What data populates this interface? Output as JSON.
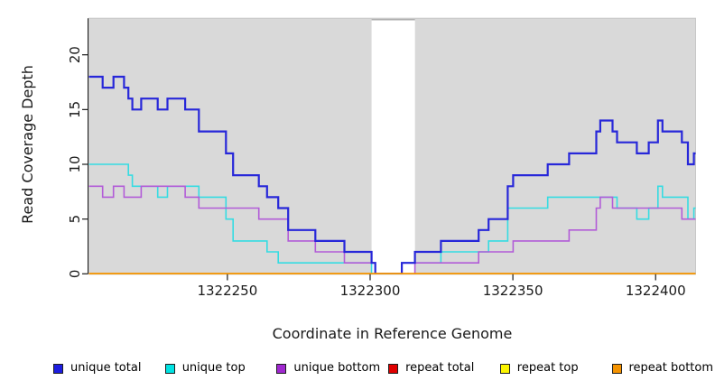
{
  "y_axis": {
    "label": "Read Coverage Depth",
    "ticks": [
      0,
      5,
      10,
      15,
      20
    ]
  },
  "x_axis": {
    "label": "Coordinate in Reference Genome",
    "ticks": [
      1322250,
      1322300,
      1322350,
      1322400
    ]
  },
  "legend": {
    "items": [
      {
        "label": "unique total",
        "color": "#1d1de0"
      },
      {
        "label": "unique top",
        "color": "#00e2e2"
      },
      {
        "label": "unique bottom",
        "color": "#a028d0"
      },
      {
        "label": "repeat total",
        "color": "#e00000"
      },
      {
        "label": "repeat top",
        "color": "#fcf500"
      },
      {
        "label": "repeat bottom",
        "color": "#f59300"
      }
    ]
  },
  "colors": {
    "panel_background": "#d9d9d9",
    "gap_band": "#ffffff",
    "panel_border": "#c7c7c7",
    "gap_band_border": "#8f8f8f",
    "axis": "#1a1a1a"
  },
  "chart_data": {
    "type": "line",
    "step": "after",
    "xlabel": "Coordinate in Reference Genome",
    "ylabel": "Read Coverage Depth",
    "xlim": [
      1322201.5,
      1322414.3
    ],
    "ylim": [
      0,
      23.3
    ],
    "x_ticks": [
      1322250,
      1322300,
      1322350,
      1322400
    ],
    "y_ticks": [
      0,
      5,
      10,
      15,
      20
    ],
    "grid": false,
    "legend_position": "bottom",
    "gap_band": {
      "from": 1322300.5,
      "to": 1322315.7
    },
    "series": [
      {
        "name": "unique total",
        "color": "#2727d9",
        "width": 2.2,
        "points": [
          [
            1322201.5,
            18
          ],
          [
            1322206.3,
            17
          ],
          [
            1322210.1,
            18
          ],
          [
            1322213.8,
            17
          ],
          [
            1322215.3,
            16
          ],
          [
            1322216.7,
            15
          ],
          [
            1322219.8,
            16
          ],
          [
            1322225.6,
            15
          ],
          [
            1322229,
            16
          ],
          [
            1322235.2,
            15
          ],
          [
            1322240,
            13
          ],
          [
            1322249.5,
            11
          ],
          [
            1322252,
            9
          ],
          [
            1322261,
            8
          ],
          [
            1322263.9,
            7
          ],
          [
            1322267.8,
            6
          ],
          [
            1322271.3,
            4
          ],
          [
            1322280.8,
            3
          ],
          [
            1322291,
            2
          ],
          [
            1322300.5,
            1
          ],
          [
            1322301.8,
            0
          ],
          [
            1322311.1,
            1
          ],
          [
            1322315.7,
            2
          ],
          [
            1322324.8,
            3
          ],
          [
            1322338,
            4
          ],
          [
            1322341.5,
            5
          ],
          [
            1322348.2,
            8
          ],
          [
            1322350.1,
            9
          ],
          [
            1322362.2,
            10
          ],
          [
            1322369.7,
            11
          ],
          [
            1322379.2,
            13
          ],
          [
            1322380.6,
            14
          ],
          [
            1322384.9,
            13
          ],
          [
            1322386.5,
            12
          ],
          [
            1322393.4,
            11
          ],
          [
            1322397.6,
            12
          ],
          [
            1322400.8,
            14
          ],
          [
            1322402.4,
            13
          ],
          [
            1322409.2,
            12
          ],
          [
            1322411.3,
            10
          ],
          [
            1322413.4,
            11
          ]
        ]
      },
      {
        "name": "unique top",
        "color": "#35dce2",
        "width": 1.6,
        "points": [
          [
            1322201.5,
            10
          ],
          [
            1322215.3,
            9
          ],
          [
            1322216.7,
            8
          ],
          [
            1322225.6,
            7
          ],
          [
            1322229,
            8
          ],
          [
            1322240,
            7
          ],
          [
            1322249.5,
            5
          ],
          [
            1322252,
            3
          ],
          [
            1322263.9,
            2
          ],
          [
            1322267.8,
            1
          ],
          [
            1322300.5,
            0
          ],
          [
            1322311.1,
            1
          ],
          [
            1322324.8,
            2
          ],
          [
            1322341.5,
            3
          ],
          [
            1322348.2,
            6
          ],
          [
            1322362.2,
            7
          ],
          [
            1322386.5,
            6
          ],
          [
            1322393.4,
            5
          ],
          [
            1322397.6,
            6
          ],
          [
            1322400.8,
            8
          ],
          [
            1322402.4,
            7
          ],
          [
            1322411.3,
            5
          ],
          [
            1322413.4,
            6
          ]
        ]
      },
      {
        "name": "unique bottom",
        "color": "#b25cd8",
        "width": 1.6,
        "points": [
          [
            1322201.5,
            8
          ],
          [
            1322206.3,
            7
          ],
          [
            1322210.1,
            8
          ],
          [
            1322213.8,
            7
          ],
          [
            1322219.8,
            8
          ],
          [
            1322235.2,
            7
          ],
          [
            1322240,
            6
          ],
          [
            1322261,
            5
          ],
          [
            1322271.3,
            3
          ],
          [
            1322280.8,
            2
          ],
          [
            1322291,
            1
          ],
          [
            1322301.8,
            0
          ],
          [
            1322315.7,
            1
          ],
          [
            1322338,
            2
          ],
          [
            1322350.1,
            3
          ],
          [
            1322369.7,
            4
          ],
          [
            1322379.2,
            6
          ],
          [
            1322380.6,
            7
          ],
          [
            1322384.9,
            6
          ],
          [
            1322409.2,
            5
          ]
        ]
      },
      {
        "name": "repeat total",
        "color": "#e00000",
        "width": 1.8,
        "points": [
          [
            1322201.5,
            0
          ]
        ]
      },
      {
        "name": "repeat top",
        "color": "#fcf500",
        "width": 1.8,
        "points": [
          [
            1322201.5,
            0
          ]
        ]
      },
      {
        "name": "repeat bottom",
        "color": "#f59300",
        "width": 2,
        "points": [
          [
            1322201.5,
            0
          ]
        ]
      }
    ]
  }
}
